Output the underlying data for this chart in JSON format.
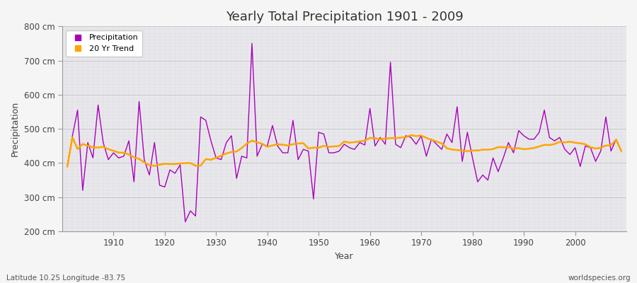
{
  "title": "Yearly Total Precipitation 1901 - 2009",
  "xlabel": "Year",
  "ylabel": "Precipitation",
  "lat_lon_label": "Latitude 10.25 Longitude -83.75",
  "source_label": "worldspecies.org",
  "ylim": [
    200,
    800
  ],
  "yticks": [
    200,
    300,
    400,
    500,
    600,
    700,
    800
  ],
  "ytick_labels": [
    "200 cm",
    "300 cm",
    "400 cm",
    "500 cm",
    "600 cm",
    "700 cm",
    "800 cm"
  ],
  "start_year": 1901,
  "precipitation_color": "#AA00BB",
  "trend_color": "#FFA500",
  "plot_bg_color": "#E8E8EC",
  "outer_bg_color": "#F5F5F5",
  "grid_color": "#CCCCCC",
  "xticks": [
    1910,
    1920,
    1930,
    1940,
    1950,
    1960,
    1970,
    1980,
    1990,
    2000
  ],
  "precipitation": [
    390,
    480,
    555,
    320,
    460,
    415,
    570,
    460,
    410,
    430,
    415,
    420,
    465,
    345,
    580,
    410,
    365,
    460,
    335,
    330,
    380,
    370,
    395,
    228,
    260,
    245,
    535,
    525,
    465,
    415,
    410,
    460,
    480,
    355,
    420,
    415,
    750,
    420,
    455,
    450,
    510,
    450,
    430,
    430,
    525,
    410,
    440,
    435,
    295,
    490,
    485,
    430,
    430,
    435,
    455,
    445,
    440,
    460,
    453,
    560,
    450,
    475,
    455,
    695,
    455,
    445,
    480,
    475,
    455,
    480,
    420,
    470,
    455,
    440,
    485,
    460,
    565,
    405,
    490,
    415,
    345,
    365,
    350,
    415,
    375,
    415,
    460,
    430,
    495,
    480,
    470,
    470,
    490,
    555,
    475,
    465,
    475,
    440,
    425,
    445,
    390,
    450,
    445,
    405,
    435,
    535,
    435,
    470,
    435
  ]
}
